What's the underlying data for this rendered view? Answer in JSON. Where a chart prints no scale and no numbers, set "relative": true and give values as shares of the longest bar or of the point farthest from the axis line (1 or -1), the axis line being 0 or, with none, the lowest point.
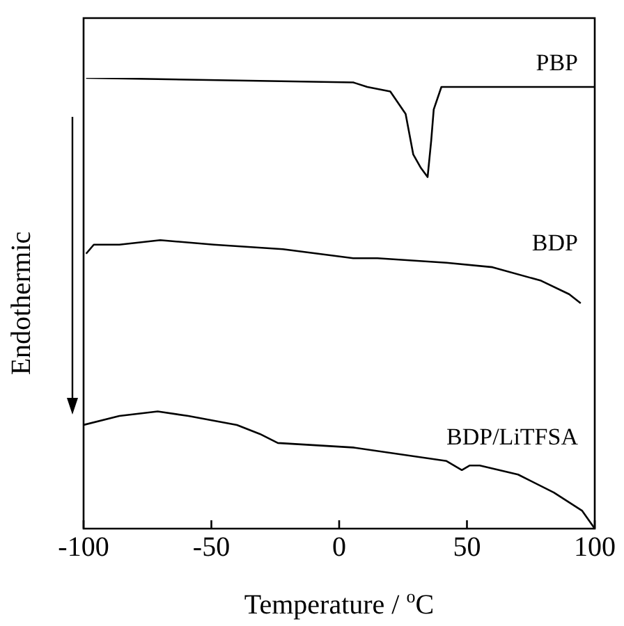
{
  "chart_data": {
    "type": "line",
    "xlabel": "Temperature / $^{o}$C",
    "ylabel": "Endothermic",
    "relative": true,
    "xlim": [
      -100,
      100
    ],
    "xticks": [
      -100,
      -50,
      0,
      50,
      100
    ],
    "legend": false,
    "grid": false,
    "marker": "none",
    "line_style": "solid",
    "series": [
      {
        "name": "PBP",
        "color": "#000000",
        "x": [
          -99,
          5.5,
          11,
          20,
          26,
          29,
          32,
          34.6,
          36,
          37,
          40,
          44,
          100
        ],
        "values": [
          1.0,
          0.99,
          0.98,
          0.97,
          0.92,
          0.83,
          0.8,
          0.78,
          0.86,
          0.93,
          0.98,
          0.98,
          0.98
        ]
      },
      {
        "name": "BDP",
        "color": "#000000",
        "x": [
          -99,
          -96,
          -86,
          -70,
          -49,
          -22,
          5.5,
          15,
          42,
          60,
          79,
          90,
          94.5
        ],
        "values": [
          0.61,
          0.63,
          0.63,
          0.64,
          0.63,
          0.62,
          0.6,
          0.6,
          0.59,
          0.58,
          0.55,
          0.52,
          0.5
        ]
      },
      {
        "name": "BDP/LiTFSA",
        "color": "#000000",
        "x": [
          -100,
          -86,
          -71,
          -59,
          -40,
          -31,
          -24,
          5.5,
          42,
          48,
          51,
          55,
          70,
          84,
          95,
          100
        ],
        "values": [
          0.23,
          0.25,
          0.26,
          0.25,
          0.23,
          0.21,
          0.19,
          0.18,
          0.15,
          0.13,
          0.14,
          0.14,
          0.12,
          0.08,
          0.04,
          0
        ]
      }
    ]
  }
}
